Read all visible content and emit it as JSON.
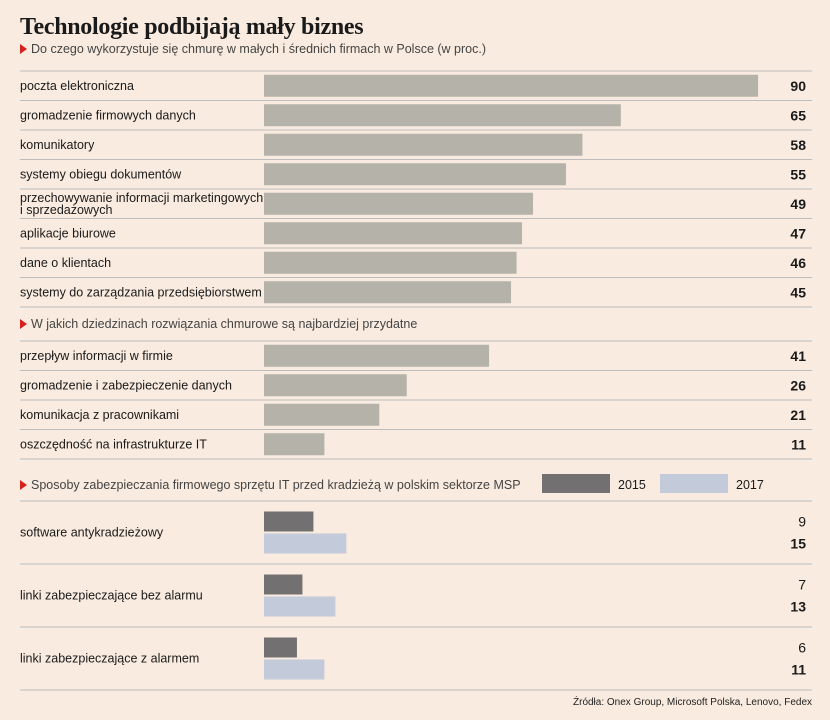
{
  "title": "Technologie podbijają mały biznes",
  "source": "Źródła: Onex Group, Microsoft Polska, Lenovo, Fedex",
  "colors": {
    "background": "#f9ebdf",
    "bar": "#b5b3a9",
    "bar_2015": "#727070",
    "bar_2017": "#c3cad9",
    "divider": "#bdbdbd",
    "accent": "#d62020"
  },
  "chart_data": [
    {
      "type": "bar",
      "orientation": "horizontal",
      "title": "Do czego wykorzystuje się chmurę w małych i średnich firmach w Polsce (w proc.)",
      "categories": [
        "poczta elektroniczna",
        "gromadzenie firmowych danych",
        "komunikatory",
        "systemy obiegu dokumentów",
        "przechowywanie informacji marketingowych i sprzedażowych",
        "aplikacje biurowe",
        "dane o klientach",
        "systemy do zarządzania przedsiębiorstwem"
      ],
      "values": [
        90,
        65,
        58,
        55,
        49,
        47,
        46,
        45
      ]
    },
    {
      "type": "bar",
      "orientation": "horizontal",
      "title": "W jakich dziedzinach rozwiązania chmurowe są najbardziej przydatne",
      "categories": [
        "przepływ informacji w firmie",
        "gromadzenie i zabezpieczenie danych",
        "komunikacja z pracownikami",
        "oszczędność na infrastrukturze IT"
      ],
      "values": [
        41,
        26,
        21,
        11
      ]
    },
    {
      "type": "bar",
      "orientation": "horizontal",
      "title": "Sposoby zabezpieczania firmowego sprzętu IT przed kradzieżą w polskim sektorze MSP",
      "categories": [
        "software antykradzieżowy",
        "linki zabezpieczające bez alarmu",
        "linki zabezpieczające z alarmem"
      ],
      "series": [
        {
          "name": "2015",
          "values": [
            9,
            7,
            6
          ]
        },
        {
          "name": "2017",
          "values": [
            15,
            13,
            11
          ]
        }
      ]
    }
  ]
}
